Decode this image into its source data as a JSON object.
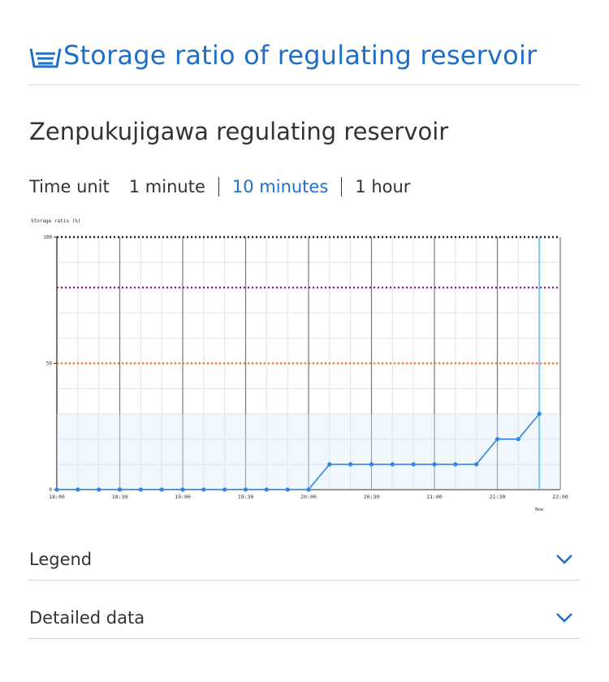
{
  "header": {
    "title": "Storage ratio of regulating reservoir",
    "icon": "reservoir-icon"
  },
  "reservoir_name": "Zenpukujigawa regulating reservoir",
  "time_unit": {
    "label": "Time unit",
    "options": [
      "1 minute",
      "10 minutes",
      "1 hour"
    ],
    "selected": "10 minutes"
  },
  "chart_data": {
    "type": "line",
    "ylabel": "Storage ratio (%)",
    "ylim": [
      0,
      100
    ],
    "yticks": [
      "0",
      "50",
      "100"
    ],
    "x_ticks": [
      "18:00",
      "18:30",
      "19:00",
      "19:30",
      "20:00",
      "20:30",
      "21:00",
      "21:30",
      "22:00"
    ],
    "x_range": [
      "18:00",
      "22:00"
    ],
    "now_label": "Now",
    "now_time": "21:50",
    "series": [
      {
        "color": "#2e86de",
        "x": [
          "18:00",
          "18:05",
          "18:10",
          "18:15",
          "18:20",
          "18:25",
          "18:30",
          "18:35",
          "18:40",
          "18:45",
          "18:50",
          "18:55",
          "19:00",
          "19:05",
          "19:10",
          "19:15",
          "19:20",
          "19:25",
          "19:30",
          "19:35",
          "19:40",
          "19:45",
          "19:50",
          "19:55",
          "20:00",
          "20:05",
          "20:10",
          "20:15",
          "20:20",
          "20:25",
          "20:30",
          "20:35",
          "20:40",
          "20:45",
          "20:50",
          "20:55",
          "21:00",
          "21:05",
          "21:10",
          "21:15",
          "21:20",
          "21:25",
          "21:30",
          "21:35",
          "21:40",
          "21:45",
          "21:50"
        ],
        "values": [
          0,
          null,
          0,
          null,
          0,
          null,
          0,
          null,
          0,
          null,
          0,
          null,
          0,
          null,
          0,
          null,
          0,
          null,
          0,
          null,
          0,
          null,
          0,
          null,
          0,
          null,
          10,
          null,
          10,
          null,
          10,
          null,
          10,
          null,
          10,
          null,
          10,
          null,
          10,
          null,
          10,
          null,
          20,
          null,
          20,
          null,
          30
        ]
      }
    ],
    "threshold_lines": [
      {
        "value": 100,
        "color": "#222222"
      },
      {
        "value": 80,
        "color": "#9b1c7a"
      },
      {
        "value": 50,
        "color": "#f07a3a"
      }
    ],
    "grid": true
  },
  "accordions": [
    {
      "label": "Legend"
    },
    {
      "label": "Detailed data"
    }
  ]
}
